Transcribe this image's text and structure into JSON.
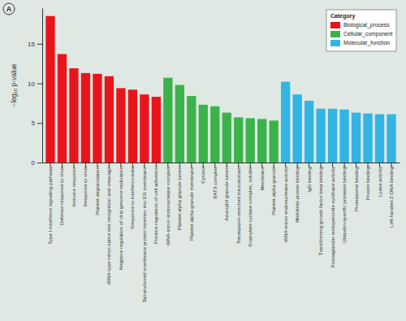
{
  "chart_data": {
    "type": "bar",
    "annotations": [
      "A"
    ],
    "y_label": "−log₁₀ p-value",
    "legend_title": "Category",
    "legend": "top-right",
    "categories": [
      "Type I interferon signaling pathway",
      "Defense response to virus",
      "Immune response",
      "Response to virus",
      "Platelet degranulation",
      "tRNA-type intron splice site recognition and cleavage",
      "Negative regulation of viral genome replication",
      "Response to interferon-beta",
      "Tail-anchored membrane protein insertion into ER membrane",
      "Positive regulation of cell adhesion",
      "tRNA-intron endonuclease complex",
      "Platelet alpha granule lumen",
      "Platelet alpha granule membrane",
      "Cytosol",
      "BAT3 complex",
      "Azurophil granule lumen",
      "Tetraspanin-enriched microdomain",
      "Guanylate cyclase complex, soluble",
      "Membrane",
      "Platelet alpha granule",
      "tRNA-intron endonuclease activity",
      "Misfolded protein binding",
      "IgG binding",
      "Transforming growth factor beta binding",
      "Prostaglandin-endoperoxide synthase activity",
      "Ubiquitin-specific protease binding",
      "Proteasome binding",
      "Protein binding",
      "Lyase activity",
      "Left-handed Z-DNA binding"
    ],
    "series": [
      {
        "name": "Biological_process",
        "color": "#e8161b",
        "values": [
          18.5,
          13.7,
          11.9,
          11.3,
          11.2,
          10.9,
          9.4,
          9.2,
          8.6,
          8.3,
          null,
          null,
          null,
          null,
          null,
          null,
          null,
          null,
          null,
          null,
          null,
          null,
          null,
          null,
          null,
          null,
          null,
          null,
          null,
          null
        ]
      },
      {
        "name": "Cellular_component",
        "color": "#3bb34a",
        "values": [
          null,
          null,
          null,
          null,
          null,
          null,
          null,
          null,
          null,
          null,
          10.7,
          9.8,
          8.4,
          7.3,
          7.1,
          6.3,
          5.7,
          5.6,
          5.5,
          5.3,
          null,
          null,
          null,
          null,
          null,
          null,
          null,
          null,
          null,
          null
        ]
      },
      {
        "name": "Molecular_function",
        "color": "#32b4e5",
        "values": [
          null,
          null,
          null,
          null,
          null,
          null,
          null,
          null,
          null,
          null,
          null,
          null,
          null,
          null,
          null,
          null,
          null,
          null,
          null,
          null,
          10.2,
          8.6,
          7.8,
          6.8,
          6.8,
          6.7,
          6.3,
          6.2,
          6.1,
          6.1
        ]
      }
    ],
    "ylim": [
      0,
      19.5
    ],
    "yticks": [
      0,
      5,
      10,
      15
    ],
    "grid": false
  }
}
